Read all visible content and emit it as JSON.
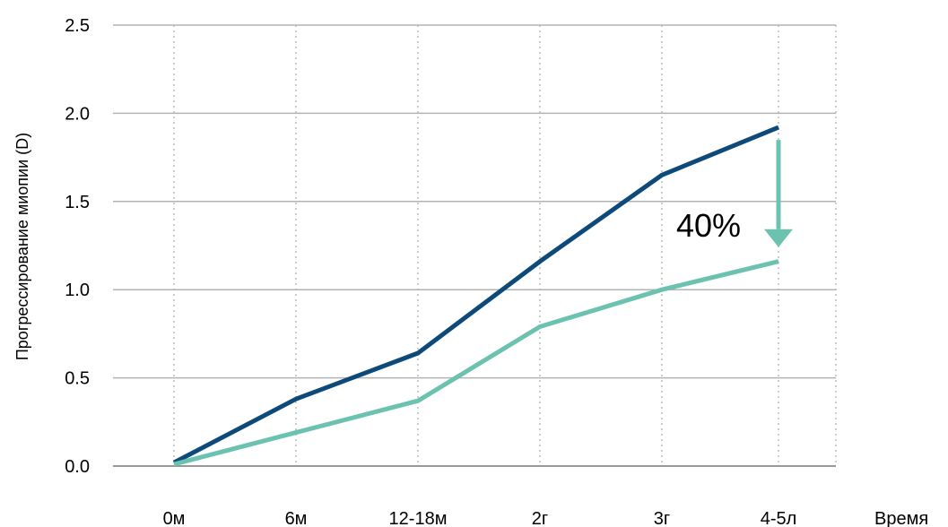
{
  "chart_data": {
    "type": "line",
    "categories": [
      "0м",
      "6м",
      "12-18м",
      "2г",
      "3г",
      "4-5л"
    ],
    "series": [
      {
        "values": [
          0.02,
          0.38,
          0.64,
          1.16,
          1.65,
          1.92
        ],
        "color": "#0d4a7a"
      },
      {
        "values": [
          0.01,
          0.19,
          0.37,
          0.79,
          1.0,
          1.16
        ],
        "color": "#6cc2b0"
      }
    ],
    "ylabel": "Прогрессирование миопии (D)",
    "xlabel": "Время",
    "ylim": [
      0,
      2.5
    ],
    "yticks": [
      "0.0",
      "0.5",
      "1.0",
      "1.5",
      "2.0",
      "2.5"
    ],
    "grid": true,
    "annotation": {
      "text": "40%",
      "from": 1.92,
      "to": 1.16,
      "category": "4-5л",
      "color": "#6cc2b0"
    }
  }
}
